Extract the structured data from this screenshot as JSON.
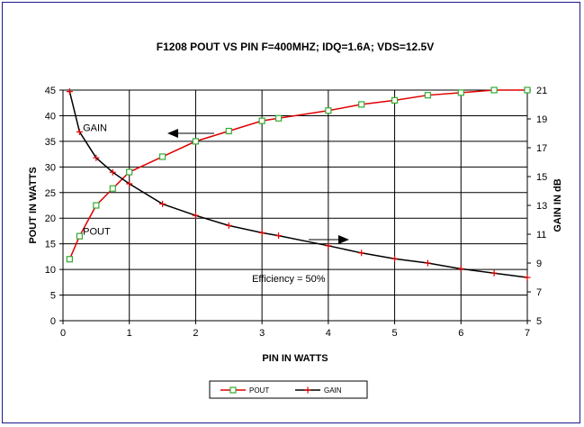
{
  "chart_data": {
    "type": "line",
    "title": "F1208 POUT VS PIN  F=400MHZ; IDQ=1.6A; VDS=12.5V",
    "xlabel": "PIN IN WATTS",
    "ylabel": "POUT IN WATTS",
    "y2label": "GAIN IN dB",
    "xlim": [
      0,
      7
    ],
    "ylim": [
      0,
      45
    ],
    "y2lim": [
      5,
      21
    ],
    "x_ticks": [
      "0",
      "1",
      "2",
      "3",
      "4",
      "5",
      "6",
      "7"
    ],
    "y_ticks": [
      "0",
      "5",
      "10",
      "15",
      "20",
      "25",
      "30",
      "35",
      "40",
      "45"
    ],
    "y2_ticks": [
      "5",
      "7",
      "9",
      "11",
      "13",
      "15",
      "17",
      "19",
      "21"
    ],
    "grid": true,
    "legend_position": "bottom",
    "series": [
      {
        "name": "POUT",
        "axis": "left",
        "color": "#e00000",
        "marker": "square",
        "marker_color": "#33aa33",
        "points": [
          [
            0.1,
            12
          ],
          [
            0.25,
            16.5
          ],
          [
            0.5,
            22.5
          ],
          [
            0.75,
            25.8
          ],
          [
            1.0,
            29
          ],
          [
            1.5,
            32
          ],
          [
            2.0,
            35
          ],
          [
            2.5,
            37
          ],
          [
            3.0,
            39
          ],
          [
            3.25,
            39.5
          ],
          [
            4.0,
            41
          ],
          [
            4.5,
            42.2
          ],
          [
            5.0,
            43
          ],
          [
            5.5,
            44
          ],
          [
            6.0,
            44.5
          ],
          [
            6.5,
            45
          ],
          [
            7.0,
            45
          ]
        ]
      },
      {
        "name": "GAIN",
        "axis": "right",
        "color": "#000000",
        "marker": "plus",
        "marker_color": "#e00000",
        "points": [
          [
            0.1,
            20.9
          ],
          [
            0.25,
            18.1
          ],
          [
            0.5,
            16.3
          ],
          [
            0.75,
            15.3
          ],
          [
            1.0,
            14.5
          ],
          [
            1.5,
            13.1
          ],
          [
            2.0,
            12.3
          ],
          [
            2.5,
            11.6
          ],
          [
            3.0,
            11.1
          ],
          [
            3.25,
            10.9
          ],
          [
            4.0,
            10.2
          ],
          [
            4.5,
            9.7
          ],
          [
            5.0,
            9.3
          ],
          [
            5.5,
            9.0
          ],
          [
            6.0,
            8.6
          ],
          [
            6.5,
            8.3
          ],
          [
            7.0,
            8.0
          ]
        ]
      }
    ],
    "annotations": [
      {
        "text": "GAIN",
        "x": 0.3,
        "y": 37
      },
      {
        "text": "POUT",
        "x": 0.3,
        "y": 16.8
      },
      {
        "text": "Efficiency = 50%",
        "x": 2.85,
        "y": 7.6
      }
    ]
  }
}
